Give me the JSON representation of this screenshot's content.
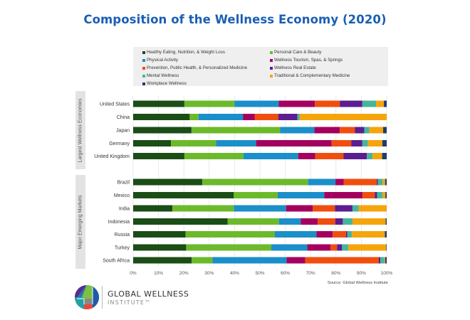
{
  "chart_data": {
    "type": "bar",
    "orientation": "horizontal",
    "stacked": true,
    "title": "Composition of the Wellness Economy (2020)",
    "xlabel": "",
    "ylabel": "",
    "xlim": [
      0,
      100
    ],
    "x_ticks": [
      "0%",
      "10%",
      "20%",
      "30%",
      "40%",
      "50%",
      "60%",
      "70%",
      "80%",
      "90%",
      "100%"
    ],
    "grid": true,
    "legend_position": "top",
    "source": "Source: Global Wellness Institute",
    "groups": [
      {
        "label": "Largest Wellness Economies",
        "categories": [
          "United States",
          "China",
          "Japan",
          "Germany",
          "United Kingdom"
        ]
      },
      {
        "label": "Major Emerging Markets",
        "categories": [
          "Brazil",
          "Mexico",
          "India",
          "Indonesia",
          "Russia",
          "Turkey",
          "South Africa"
        ]
      }
    ],
    "categories": [
      "United States",
      "China",
      "Japan",
      "Germany",
      "United Kingdom",
      "Brazil",
      "Mexico",
      "India",
      "Indonesia",
      "Russia",
      "Turkey",
      "South Africa"
    ],
    "series": [
      {
        "name": "Healthy Eating, Nutrition, & Weight Loss",
        "color": "#1b4d17",
        "values": [
          20.2,
          22.3,
          23.0,
          14.9,
          20.2,
          27.3,
          39.7,
          15.5,
          37.3,
          20.7,
          20.9,
          23.1
        ]
      },
      {
        "name": "Personal Care & Beauty",
        "color": "#6cba2b",
        "values": [
          19.8,
          3.5,
          35.0,
          17.8,
          23.3,
          41.7,
          17.3,
          24.2,
          20.2,
          35.2,
          33.6,
          8.2
        ]
      },
      {
        "name": "Physical Activity",
        "color": "#1b8fc9",
        "values": [
          17.4,
          17.5,
          13.5,
          15.8,
          21.6,
          10.8,
          18.4,
          20.6,
          8.6,
          16.4,
          14.2,
          29.2
        ]
      },
      {
        "name": "Wellness Tourism, Spas, & Springs",
        "color": "#a3005f",
        "values": [
          14.3,
          4.7,
          10.0,
          29.8,
          6.7,
          3.2,
          15.1,
          10.5,
          6.7,
          6.4,
          9.2,
          7.4
        ]
      },
      {
        "name": "Prevention, Public Health, & Personalized Medicine",
        "color": "#f04e0f",
        "values": [
          9.8,
          9.3,
          6.0,
          7.7,
          11.2,
          13.1,
          4.8,
          8.8,
          6.9,
          5.3,
          2.5,
          29.0
        ]
      },
      {
        "name": "Wellness Real Estate",
        "color": "#5b1e91",
        "values": [
          8.9,
          7.5,
          3.7,
          4.4,
          9.2,
          0.4,
          0.9,
          6.9,
          3.0,
          0.5,
          2.0,
          0.6
        ]
      },
      {
        "name": "Mental Wellness",
        "color": "#46b59a",
        "values": [
          5.4,
          0.9,
          2.0,
          2.2,
          2.2,
          1.9,
          2.2,
          2.5,
          3.8,
          1.8,
          2.5,
          1.6
        ]
      },
      {
        "name": "Traditional & Complementary Medicine",
        "color": "#f5a50c",
        "values": [
          3.1,
          34.3,
          5.4,
          5.7,
          3.8,
          1.0,
          1.1,
          11.0,
          13.1,
          13.0,
          14.9,
          0.3
        ]
      },
      {
        "name": "Workplace Wellness",
        "color": "#1f3d6e",
        "values": [
          1.1,
          0.0,
          1.4,
          1.7,
          1.8,
          0.6,
          0.5,
          0.0,
          0.4,
          0.7,
          0.2,
          0.6
        ]
      }
    ]
  },
  "branding": {
    "name_line1": "GLOBAL WELLNESS",
    "name_line2": "INSTITUTE™"
  }
}
